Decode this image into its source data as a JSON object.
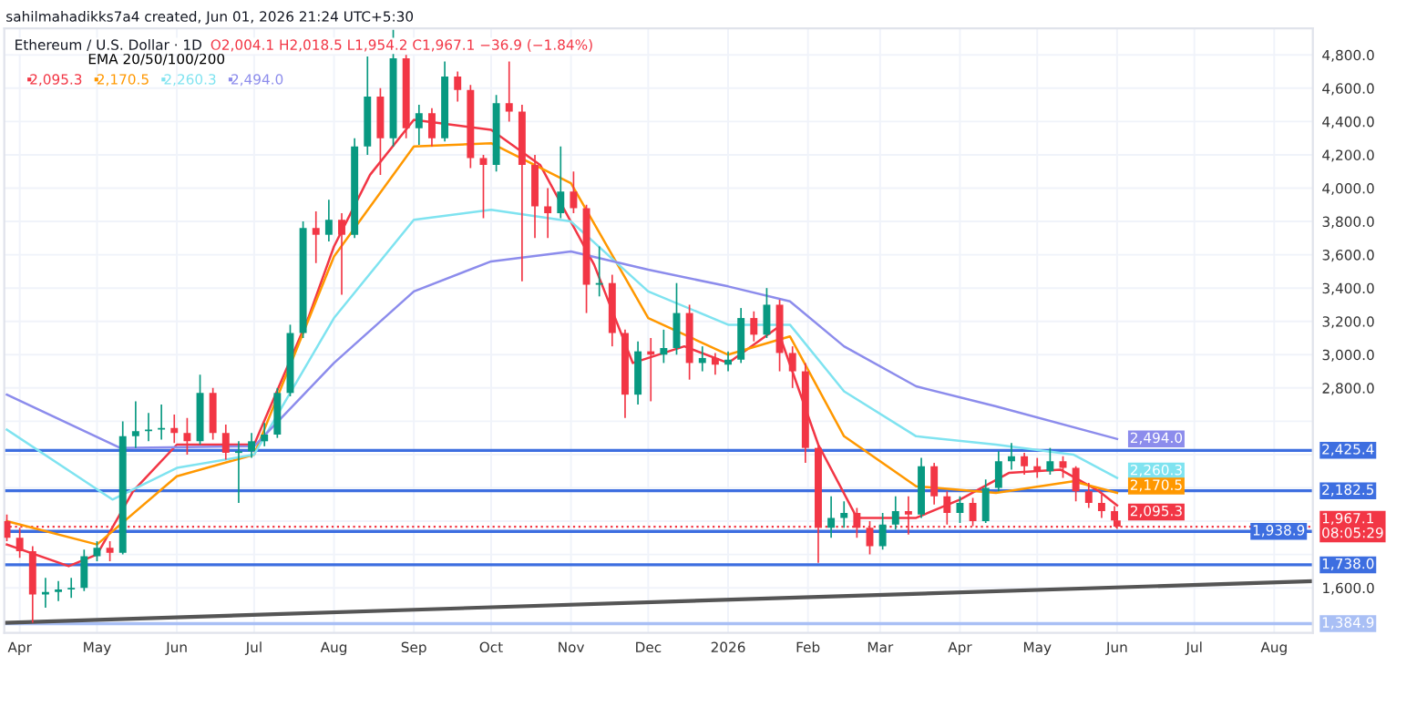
{
  "chart_data": {
    "type": "candlestick",
    "title": "Ethereum / U.S. Dollar · 1D",
    "annotations": [
      "sahilmahadikks7a4 created, Jun 01, 2026 21:24 UTC+5:30",
      "O2,004.1 H2,018.5 L1,954.2 C1,967.1 −36.9 (−1.84%)"
    ],
    "legend_title": "EMA 20/50/100/200",
    "legend": "top left",
    "grid": true,
    "x": [
      "2025-03-27",
      "2025-04-01",
      "2025-04-06",
      "2025-04-11",
      "2025-04-16",
      "2025-04-21",
      "2025-04-26",
      "2025-05-01",
      "2025-05-06",
      "2025-05-11",
      "2025-05-16",
      "2025-05-21",
      "2025-05-26",
      "2025-05-31",
      "2025-06-05",
      "2025-06-10",
      "2025-06-15",
      "2025-06-20",
      "2025-06-25",
      "2025-06-30",
      "2025-07-05",
      "2025-07-10",
      "2025-07-15",
      "2025-07-20",
      "2025-07-25",
      "2025-07-30",
      "2025-08-04",
      "2025-08-09",
      "2025-08-14",
      "2025-08-19",
      "2025-08-24",
      "2025-08-29",
      "2025-09-03",
      "2025-09-08",
      "2025-09-13",
      "2025-09-18",
      "2025-09-23",
      "2025-09-28",
      "2025-10-03",
      "2025-10-08",
      "2025-10-13",
      "2025-10-18",
      "2025-10-23",
      "2025-10-28",
      "2025-11-02",
      "2025-11-07",
      "2025-11-12",
      "2025-11-17",
      "2025-11-22",
      "2025-11-27",
      "2025-12-02",
      "2025-12-07",
      "2025-12-12",
      "2025-12-17",
      "2025-12-22",
      "2025-12-27",
      "2026-01-01",
      "2026-01-06",
      "2026-01-11",
      "2026-01-16",
      "2026-01-21",
      "2026-01-26",
      "2026-01-31",
      "2026-02-05",
      "2026-02-10",
      "2026-02-15",
      "2026-02-20",
      "2026-02-25",
      "2026-03-02",
      "2026-03-07",
      "2026-03-12",
      "2026-03-17",
      "2026-03-22",
      "2026-03-27",
      "2026-04-01",
      "2026-04-06",
      "2026-04-11",
      "2026-04-16",
      "2026-04-21",
      "2026-04-26",
      "2026-05-01",
      "2026-05-06",
      "2026-05-11",
      "2026-05-16",
      "2026-05-21",
      "2026-05-26",
      "2026-05-31",
      "2026-06-01"
    ],
    "ohlc": [
      [
        2000,
        2040,
        1880,
        1900
      ],
      [
        1900,
        1960,
        1780,
        1820
      ],
      [
        1820,
        1850,
        1390,
        1560
      ],
      [
        1560,
        1660,
        1480,
        1575
      ],
      [
        1575,
        1640,
        1520,
        1590
      ],
      [
        1590,
        1660,
        1540,
        1600
      ],
      [
        1600,
        1830,
        1580,
        1790
      ],
      [
        1790,
        1880,
        1760,
        1840
      ],
      [
        1840,
        1880,
        1760,
        1810
      ],
      [
        1810,
        2600,
        1800,
        2510
      ],
      [
        2510,
        2720,
        2440,
        2540
      ],
      [
        2540,
        2650,
        2480,
        2550
      ],
      [
        2550,
        2700,
        2490,
        2560
      ],
      [
        2560,
        2640,
        2470,
        2530
      ],
      [
        2530,
        2620,
        2400,
        2480
      ],
      [
        2480,
        2880,
        2460,
        2770
      ],
      [
        2770,
        2800,
        2490,
        2530
      ],
      [
        2530,
        2580,
        2370,
        2410
      ],
      [
        2410,
        2480,
        2110,
        2420
      ],
      [
        2420,
        2530,
        2380,
        2480
      ],
      [
        2480,
        2590,
        2450,
        2520
      ],
      [
        2520,
        2800,
        2500,
        2770
      ],
      [
        2770,
        3180,
        2750,
        3130
      ],
      [
        3130,
        3800,
        3100,
        3760
      ],
      [
        3760,
        3860,
        3550,
        3720
      ],
      [
        3720,
        3930,
        3680,
        3810
      ],
      [
        3810,
        3850,
        3360,
        3720
      ],
      [
        3720,
        4300,
        3700,
        4250
      ],
      [
        4250,
        4790,
        4200,
        4550
      ],
      [
        4550,
        4600,
        4080,
        4300
      ],
      [
        4300,
        4950,
        4250,
        4780
      ],
      [
        4780,
        4800,
        4300,
        4360
      ],
      [
        4360,
        4500,
        4260,
        4450
      ],
      [
        4450,
        4480,
        4250,
        4300
      ],
      [
        4300,
        4760,
        4280,
        4670
      ],
      [
        4670,
        4700,
        4520,
        4590
      ],
      [
        4590,
        4620,
        4120,
        4180
      ],
      [
        4180,
        4200,
        3820,
        4140
      ],
      [
        4140,
        4560,
        4100,
        4510
      ],
      [
        4510,
        4760,
        4400,
        4460
      ],
      [
        4460,
        4500,
        3440,
        4140
      ],
      [
        4140,
        4200,
        3700,
        3890
      ],
      [
        3890,
        4000,
        3700,
        3850
      ],
      [
        3850,
        4250,
        3820,
        3980
      ],
      [
        3980,
        4100,
        3850,
        3880
      ],
      [
        3880,
        3900,
        3250,
        3420
      ],
      [
        3420,
        3650,
        3350,
        3430
      ],
      [
        3430,
        3480,
        3050,
        3130
      ],
      [
        3130,
        3150,
        2620,
        2760
      ],
      [
        2760,
        3080,
        2700,
        3020
      ],
      [
        3020,
        3100,
        2720,
        3000
      ],
      [
        3000,
        3150,
        2950,
        3040
      ],
      [
        3040,
        3430,
        3000,
        3250
      ],
      [
        3250,
        3300,
        2850,
        2950
      ],
      [
        2950,
        3050,
        2900,
        2980
      ],
      [
        2980,
        3010,
        2880,
        2940
      ],
      [
        2940,
        3020,
        2900,
        2970
      ],
      [
        2970,
        3280,
        2950,
        3220
      ],
      [
        3220,
        3260,
        3080,
        3120
      ],
      [
        3120,
        3400,
        3100,
        3300
      ],
      [
        3300,
        3330,
        2900,
        3010
      ],
      [
        3010,
        3050,
        2800,
        2900
      ],
      [
        2900,
        2950,
        2350,
        2440
      ],
      [
        2440,
        2460,
        1750,
        1960
      ],
      [
        1960,
        2150,
        1900,
        2020
      ],
      [
        2020,
        2120,
        1960,
        2050
      ],
      [
        2050,
        2080,
        1900,
        1960
      ],
      [
        1960,
        2000,
        1800,
        1850
      ],
      [
        1850,
        2050,
        1830,
        1980
      ],
      [
        1980,
        2150,
        1950,
        2060
      ],
      [
        2060,
        2150,
        1920,
        2040
      ],
      [
        2040,
        2380,
        2020,
        2330
      ],
      [
        2330,
        2350,
        2100,
        2150
      ],
      [
        2150,
        2180,
        1980,
        2050
      ],
      [
        2050,
        2150,
        1990,
        2110
      ],
      [
        2110,
        2140,
        1970,
        2000
      ],
      [
        2000,
        2250,
        1990,
        2200
      ],
      [
        2200,
        2420,
        2180,
        2360
      ],
      [
        2360,
        2470,
        2310,
        2390
      ],
      [
        2390,
        2410,
        2280,
        2330
      ],
      [
        2330,
        2380,
        2260,
        2300
      ],
      [
        2300,
        2440,
        2280,
        2360
      ],
      [
        2360,
        2390,
        2260,
        2320
      ],
      [
        2320,
        2330,
        2120,
        2180
      ],
      [
        2180,
        2230,
        2080,
        2110
      ],
      [
        2110,
        2160,
        2020,
        2060
      ],
      [
        2060,
        2090,
        1980,
        2004.1
      ],
      [
        2004.1,
        2018.5,
        1954.2,
        1967.1
      ]
    ],
    "colors": [
      "#f23645",
      "#f23645",
      "#f23645",
      "#089981",
      "#089981",
      "#089981",
      "#089981",
      "#089981",
      "#f23645",
      "#089981",
      "#089981",
      "#089981",
      "#089981",
      "#f23645",
      "#f23645",
      "#089981",
      "#f23645",
      "#f23645",
      "#089981",
      "#089981",
      "#089981",
      "#089981",
      "#089981",
      "#089981",
      "#f23645",
      "#089981",
      "#f23645",
      "#089981",
      "#089981",
      "#f23645",
      "#089981",
      "#f23645",
      "#089981",
      "#f23645",
      "#089981",
      "#f23645",
      "#f23645",
      "#f23645",
      "#089981",
      "#f23645",
      "#f23645",
      "#f23645",
      "#f23645",
      "#089981",
      "#f23645",
      "#f23645",
      "#089981",
      "#f23645",
      "#f23645",
      "#089981",
      "#f23645",
      "#089981",
      "#089981",
      "#f23645",
      "#089981",
      "#f23645",
      "#089981",
      "#089981",
      "#f23645",
      "#089981",
      "#f23645",
      "#f23645",
      "#f23645",
      "#f23645",
      "#089981",
      "#089981",
      "#f23645",
      "#f23645",
      "#089981",
      "#089981",
      "#f23645",
      "#089981",
      "#f23645",
      "#f23645",
      "#089981",
      "#f23645",
      "#089981",
      "#089981",
      "#089981",
      "#f23645",
      "#f23645",
      "#089981",
      "#f23645",
      "#f23645",
      "#f23645",
      "#f23645",
      "#f23645",
      "#f23645"
    ],
    "series": [
      {
        "type": "line",
        "name": "2,095.3",
        "color": "#f23645",
        "x": [
          "2025-03-27",
          "2025-04-20",
          "2025-05-01",
          "2025-05-15",
          "2025-06-01",
          "2025-07-01",
          "2025-07-22",
          "2025-08-01",
          "2025-08-15",
          "2025-09-01",
          "2025-10-01",
          "2025-10-20",
          "2025-11-10",
          "2025-11-25",
          "2025-12-15",
          "2026-01-01",
          "2026-01-20",
          "2026-02-05",
          "2026-02-20",
          "2026-03-15",
          "2026-04-01",
          "2026-04-20",
          "2026-05-10",
          "2026-05-25",
          "2026-06-01"
        ],
        "values": [
          1860,
          1730,
          1800,
          2180,
          2460,
          2460,
          3220,
          3650,
          4080,
          4410,
          4350,
          4140,
          3540,
          2950,
          3050,
          2950,
          3160,
          2460,
          2020,
          2020,
          2130,
          2290,
          2310,
          2180,
          2095.3
        ],
        "value_labels": [
          null,
          null,
          null,
          null,
          null,
          null,
          null,
          null,
          null,
          null,
          null,
          null,
          null,
          null,
          null,
          null,
          null,
          null,
          null,
          null,
          null,
          null,
          null,
          null,
          "2,095.3"
        ]
      },
      {
        "type": "line",
        "name": "2,170.5",
        "color": "#ff9800",
        "x": [
          "2025-03-27",
          "2025-05-01",
          "2025-06-01",
          "2025-07-01",
          "2025-08-01",
          "2025-09-01",
          "2025-10-01",
          "2025-11-01",
          "2025-12-01",
          "2026-01-01",
          "2026-01-25",
          "2026-02-15",
          "2026-03-15",
          "2026-04-15",
          "2026-05-15",
          "2026-06-01"
        ],
        "values": [
          2000,
          1860,
          2270,
          2400,
          3590,
          4250,
          4270,
          4030,
          3220,
          3000,
          3110,
          2510,
          2210,
          2170,
          2240,
          2170.5
        ],
        "value_labels": [
          null,
          null,
          null,
          null,
          null,
          null,
          null,
          null,
          null,
          null,
          null,
          null,
          null,
          null,
          null,
          "2,170.5"
        ]
      },
      {
        "type": "line",
        "name": "2,260.3",
        "color": "#7fe3f0",
        "x": [
          "2025-03-27",
          "2025-05-07",
          "2025-06-01",
          "2025-07-01",
          "2025-08-01",
          "2025-09-01",
          "2025-10-01",
          "2025-11-01",
          "2025-12-01",
          "2026-01-01",
          "2026-01-25",
          "2026-02-15",
          "2026-03-15",
          "2026-04-15",
          "2026-05-15",
          "2026-06-01"
        ],
        "values": [
          2550,
          2130,
          2320,
          2400,
          3220,
          3810,
          3870,
          3800,
          3380,
          3180,
          3180,
          2780,
          2510,
          2460,
          2400,
          2260.3
        ],
        "value_labels": [
          null,
          null,
          null,
          null,
          null,
          null,
          null,
          null,
          null,
          null,
          null,
          null,
          null,
          null,
          null,
          "2,260.3"
        ]
      },
      {
        "type": "line",
        "name": "2,494.0",
        "color": "#8c8cec",
        "x": [
          "2025-03-27",
          "2025-05-10",
          "2025-07-01",
          "2025-08-01",
          "2025-09-01",
          "2025-10-01",
          "2025-11-01",
          "2025-12-01",
          "2026-01-01",
          "2026-01-25",
          "2026-02-15",
          "2026-03-15",
          "2026-04-15",
          "2026-06-01"
        ],
        "values": [
          2760,
          2440,
          2450,
          2950,
          3380,
          3560,
          3620,
          3510,
          3410,
          3320,
          3050,
          2810,
          2690,
          2494.0
        ],
        "value_labels": [
          null,
          null,
          null,
          null,
          null,
          null,
          null,
          null,
          null,
          null,
          null,
          null,
          null,
          "2,494.0"
        ]
      },
      {
        "type": "line",
        "color": "#555555",
        "x": [
          "2025-03-26",
          "2026-08-16"
        ],
        "values": [
          1390,
          1640
        ]
      }
    ],
    "ref_lines": [
      {
        "axis": "y",
        "value": 2425.4,
        "label": "2,425.4",
        "color": "#3d6ee0"
      },
      {
        "axis": "y",
        "value": 2182.5,
        "label": "2,182.5",
        "color": "#3d6ee0"
      },
      {
        "axis": "y",
        "value": 1967.1,
        "label": "1,967.1\n08:05:29",
        "color": "#f23645",
        "line_style": "dotted"
      },
      {
        "axis": "y",
        "value": 1938.9,
        "label": "1,938.9",
        "color": "#3d6ee0"
      },
      {
        "axis": "y",
        "value": 1738.0,
        "label": "1,738.0",
        "color": "#3d6ee0"
      },
      {
        "axis": "y",
        "value": 1384.9,
        "label": "1,384.9",
        "color": "#a9bff5"
      }
    ],
    "xlim": [
      "2025-03-26",
      "2026-08-16"
    ],
    "xticks": [
      {
        "value": "2025-04-01",
        "label": "Apr"
      },
      {
        "value": "2025-05-01",
        "label": "May"
      },
      {
        "value": "2025-06-01",
        "label": "Jun"
      },
      {
        "value": "2025-07-01",
        "label": "Jul"
      },
      {
        "value": "2025-08-01",
        "label": "Aug"
      },
      {
        "value": "2025-09-01",
        "label": "Sep"
      },
      {
        "value": "2025-10-01",
        "label": "Oct"
      },
      {
        "value": "2025-11-01",
        "label": "Nov"
      },
      {
        "value": "2025-12-01",
        "label": "Dec"
      },
      {
        "value": "2026-01-01",
        "label": "2026"
      },
      {
        "value": "2026-02-01",
        "label": "Feb"
      },
      {
        "value": "2026-03-01",
        "label": "Mar"
      },
      {
        "value": "2026-04-01",
        "label": "Apr"
      },
      {
        "value": "2026-05-01",
        "label": "May"
      },
      {
        "value": "2026-06-01",
        "label": "Jun"
      },
      {
        "value": "2026-07-01",
        "label": "Jul"
      },
      {
        "value": "2026-08-01",
        "label": "Aug"
      }
    ],
    "ylim": [
      1330,
      4960
    ],
    "yticks": [
      {
        "value": 1600,
        "label": "1,600.0"
      },
      {
        "value": 1800,
        "label": null
      },
      {
        "value": 2000,
        "label": null
      },
      {
        "value": 2200,
        "label": null
      },
      {
        "value": 2400,
        "label": null
      },
      {
        "value": 2600,
        "label": null
      },
      {
        "value": 2800,
        "label": "2,800.0"
      },
      {
        "value": 3000,
        "label": "3,000.0"
      },
      {
        "value": 3200,
        "label": "3,200.0"
      },
      {
        "value": 3400,
        "label": "3,400.0"
      },
      {
        "value": 3600,
        "label": "3,600.0"
      },
      {
        "value": 3800,
        "label": "3,800.0"
      },
      {
        "value": 4000,
        "label": "4,000.0"
      },
      {
        "value": 4200,
        "label": "4,200.0"
      },
      {
        "value": 4400,
        "label": "4,400.0"
      },
      {
        "value": 4600,
        "label": "4,600.0"
      },
      {
        "value": 4800,
        "label": "4,800.0"
      }
    ]
  }
}
